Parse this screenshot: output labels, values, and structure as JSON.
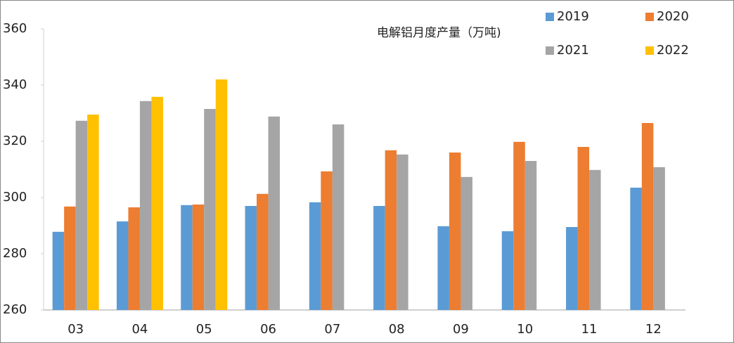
{
  "chart_data": {
    "type": "bar",
    "title": "电解铝月度产量（万吨)",
    "categories": [
      "03",
      "04",
      "05",
      "06",
      "07",
      "08",
      "09",
      "10",
      "11",
      "12"
    ],
    "series": [
      {
        "name": "2019",
        "color": "#5b9bd5",
        "values": [
          287.8,
          291.5,
          297.3,
          297,
          298.3,
          297,
          289.8,
          288,
          289.5,
          303.5
        ]
      },
      {
        "name": "2020",
        "color": "#ed7d31",
        "values": [
          296.8,
          296.5,
          297.5,
          301.3,
          309.3,
          316.8,
          316,
          319.8,
          318,
          326.5
        ]
      },
      {
        "name": "2021",
        "color": "#a5a5a5",
        "values": [
          327.3,
          334.3,
          331.5,
          328.8,
          326,
          315.3,
          307.3,
          313,
          309.8,
          310.8
        ]
      },
      {
        "name": "2022",
        "color": "#ffc000",
        "values": [
          329.5,
          335.8,
          342,
          null,
          null,
          null,
          null,
          null,
          null,
          null
        ]
      }
    ],
    "ylim": [
      260,
      360
    ],
    "yticks": [
      260,
      280,
      300,
      320,
      340,
      360
    ],
    "grid": false,
    "legend": "top-right"
  }
}
